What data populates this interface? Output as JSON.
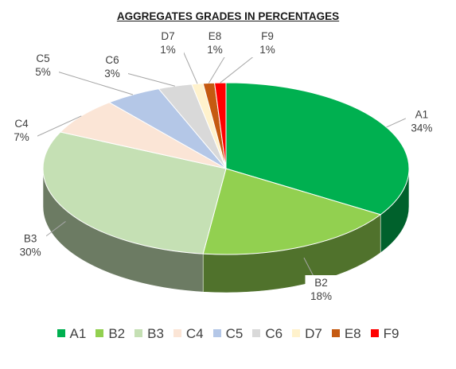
{
  "chart_data": {
    "type": "pie",
    "title": "AGGREGATES GRADES IN PERCENTAGES",
    "categories": [
      "A1",
      "B2",
      "B3",
      "C4",
      "C5",
      "C6",
      "D7",
      "E8",
      "F9"
    ],
    "values": [
      34,
      18,
      30,
      7,
      5,
      3,
      1,
      1,
      1
    ],
    "labels": [
      "34%",
      "18%",
      "30%",
      "7%",
      "5%",
      "3%",
      "1%",
      "1%",
      "1%"
    ],
    "colors": [
      "#00b050",
      "#92d050",
      "#c5e0b4",
      "#fbe5d6",
      "#b4c7e7",
      "#d9d9d9",
      "#fff2cc",
      "#c55a11",
      "#ff0000"
    ],
    "legend_position": "bottom",
    "three_d": true
  }
}
